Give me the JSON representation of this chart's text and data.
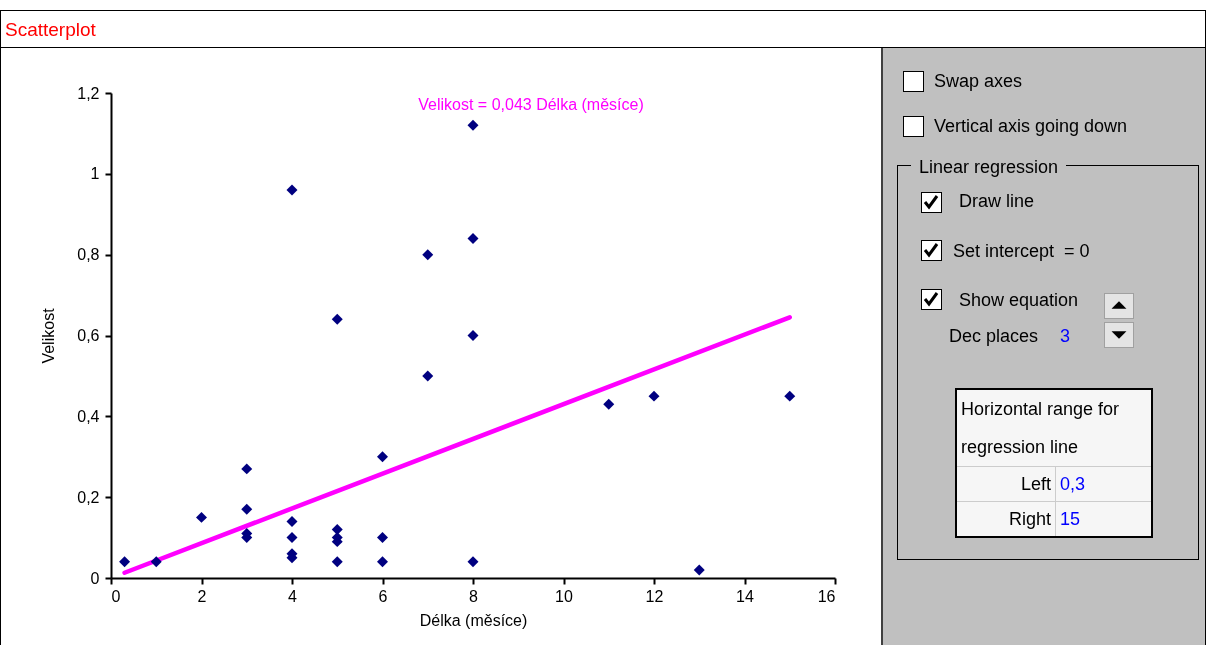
{
  "chart_data": {
    "type": "scatter",
    "title": "Scatterplot",
    "xlabel": "Délka (měsíce)",
    "ylabel": "Velikost",
    "xlim": [
      0,
      16
    ],
    "xticks": [
      0,
      2,
      4,
      6,
      8,
      10,
      12,
      14,
      16
    ],
    "ylim": [
      0,
      1.2
    ],
    "yticks": [
      0,
      {
        "value": 0.2,
        "label": "0,2"
      },
      {
        "value": 0.4,
        "label": "0,4"
      },
      {
        "value": 0.6,
        "label": "0,6"
      },
      {
        "value": 0.8,
        "label": "0,8"
      },
      1,
      {
        "value": 1.2,
        "label": "1,2"
      }
    ],
    "grid": false,
    "series": [
      {
        "marker": "diamond",
        "color": "#000080",
        "x": [
          0.3,
          1,
          2,
          3,
          3,
          3,
          3,
          4,
          4,
          4,
          4,
          4,
          5,
          5,
          5,
          5,
          5,
          6,
          6,
          6,
          7,
          7,
          8,
          8,
          8,
          8,
          11,
          12,
          13,
          15
        ],
        "values": [
          0.04,
          0.04,
          0.15,
          0.27,
          0.17,
          0.11,
          0.1,
          0.96,
          0.14,
          0.1,
          0.06,
          0.05,
          0.64,
          0.12,
          0.1,
          0.09,
          0.04,
          0.3,
          0.1,
          0.04,
          0.8,
          0.5,
          1.12,
          0.84,
          0.6,
          0.04,
          0.43,
          0.45,
          0.02,
          0.45
        ]
      },
      {
        "type": "line",
        "color": "#ff00ff",
        "x": [
          0.3,
          15
        ],
        "values": [
          0.013,
          0.645
        ]
      }
    ],
    "annotations": [
      "Velikost = 0,043 Délka (měsíce)",
      "Swap axes",
      "Vertical axis going down",
      "Linear regression",
      "Draw line",
      "Set intercept  = 0",
      "Show equation",
      "Dec places",
      "3",
      "Horizontal range for regression line",
      "Left",
      "0,3",
      "Right",
      "15"
    ]
  }
}
